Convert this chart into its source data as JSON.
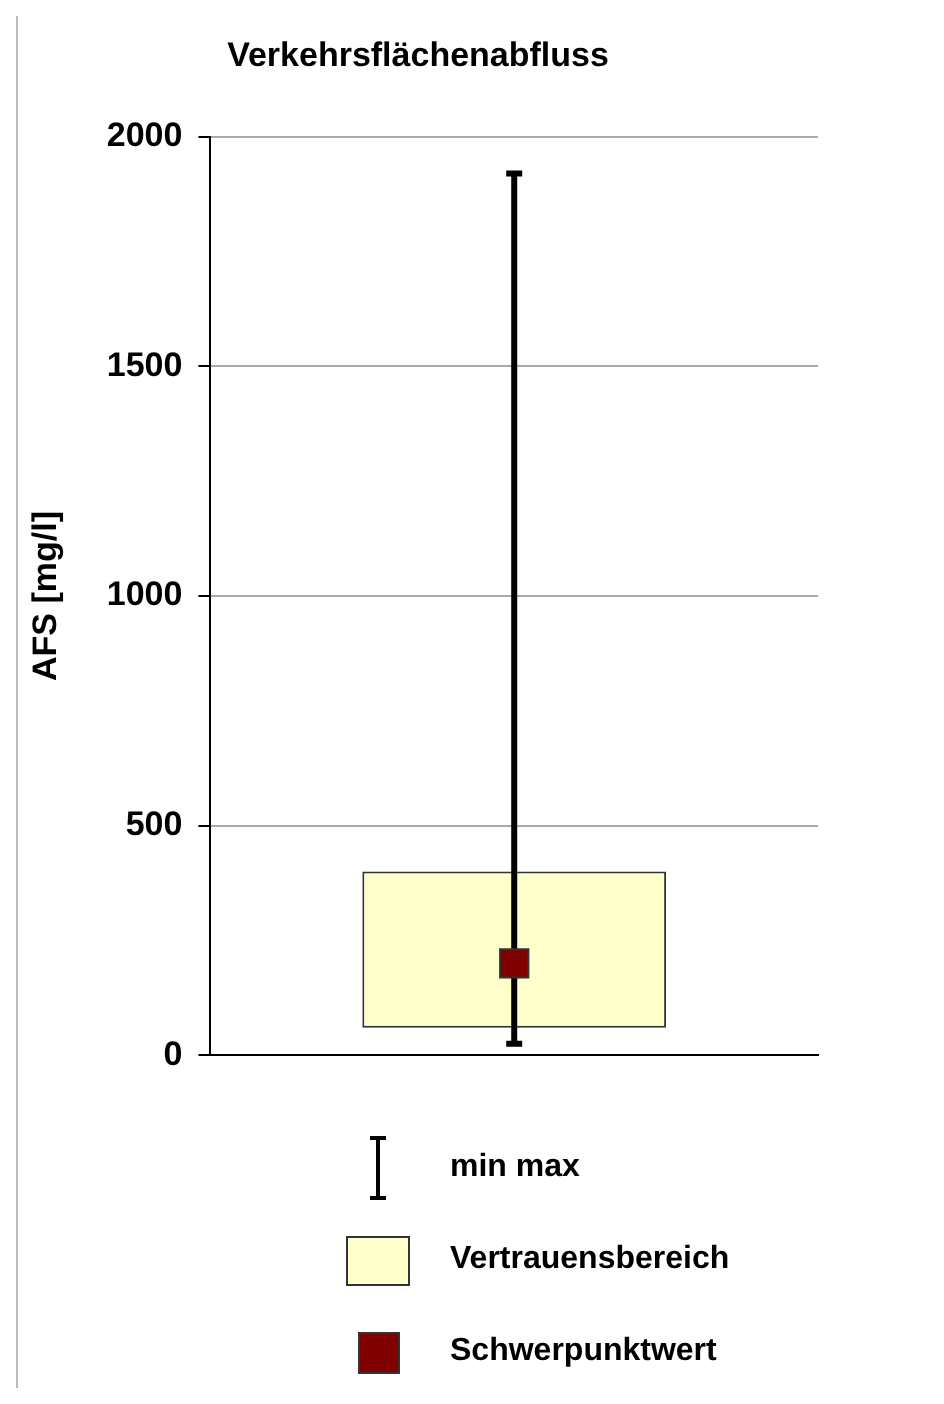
{
  "chart_data": {
    "type": "bar",
    "title": "Verkehrsflächenabfluss",
    "ylabel": "AFS [mg/l]",
    "categories": [
      null
    ],
    "ylim": [
      0,
      2000
    ],
    "yticks": [
      0,
      500,
      1000,
      1500,
      2000
    ],
    "grid": "y",
    "legend": "bottom",
    "annotations": [
      "min max"
    ],
    "series": [
      {
        "name": "Vertrauensbereich",
        "color": "#ffffcc",
        "base": [
          60
        ],
        "values": [
          340
        ]
      },
      {
        "name": "Schwerpunktwert",
        "type": "scatter",
        "marker": "square",
        "color": "#800000",
        "values": [
          200
        ],
        "errors": [
          [
            25,
            1920
          ]
        ]
      }
    ]
  }
}
